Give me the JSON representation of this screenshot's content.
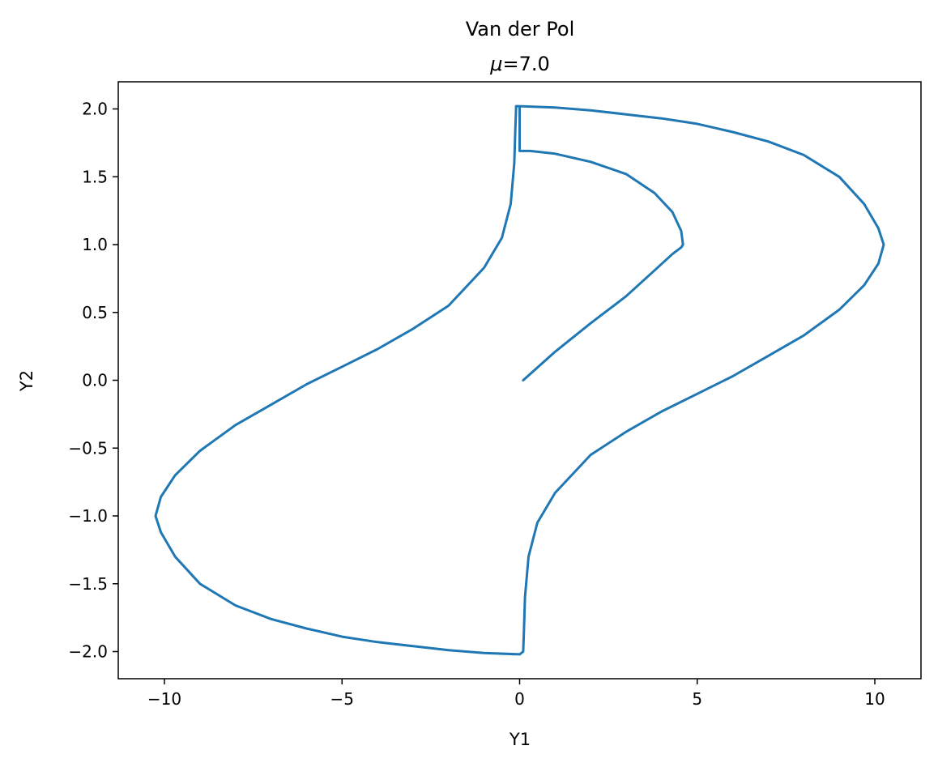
{
  "chart_data": {
    "type": "line",
    "title": "Van der Pol",
    "subtitle_symbol": "μ",
    "subtitle_value": "=7.0",
    "xlabel": "Y1",
    "ylabel": "Y2",
    "xlim": [
      -11.3,
      11.3
    ],
    "ylim": [
      -2.2,
      2.2
    ],
    "grid": false,
    "line_color": "#1f77b4",
    "xticks": [
      {
        "value": -10,
        "label": "−10"
      },
      {
        "value": -5,
        "label": "−5"
      },
      {
        "value": 0,
        "label": "0"
      },
      {
        "value": 5,
        "label": "5"
      },
      {
        "value": 10,
        "label": "10"
      }
    ],
    "yticks": [
      {
        "value": 2.0,
        "label": "2.0"
      },
      {
        "value": 1.5,
        "label": "1.5"
      },
      {
        "value": 1.0,
        "label": "1.0"
      },
      {
        "value": 0.5,
        "label": "0.5"
      },
      {
        "value": 0.0,
        "label": "0.0"
      },
      {
        "value": -0.5,
        "label": "−0.5"
      },
      {
        "value": -1.0,
        "label": "−1.0"
      },
      {
        "value": -1.5,
        "label": "−1.5"
      },
      {
        "value": -2.0,
        "label": "−2.0"
      }
    ],
    "series": [
      {
        "x": [
          0.1,
          1.0,
          2.0,
          3.0,
          3.8,
          4.3,
          4.55,
          4.6,
          4.55,
          4.3,
          3.8,
          3.0,
          2.0,
          1.0,
          0.3,
          0.0,
          0.0,
          1.0,
          2.0,
          3.0,
          4.0,
          5.0,
          6.0,
          7.0,
          8.0,
          9.0,
          9.7,
          10.1,
          10.25,
          10.1,
          9.7,
          9.0,
          8.0,
          7.0,
          6.0,
          5.0,
          4.0,
          3.0,
          2.0,
          1.0,
          0.5,
          0.25,
          0.15,
          0.12,
          0.1,
          0.0,
          -1.0,
          -2.0,
          -3.0,
          -4.0,
          -5.0,
          -6.0,
          -7.0,
          -8.0,
          -9.0,
          -9.7,
          -10.1,
          -10.25,
          -10.1,
          -9.7,
          -9.0,
          -8.0,
          -7.0,
          -6.0,
          -5.0,
          -4.0,
          -3.0,
          -2.0,
          -1.0,
          -0.5,
          -0.25,
          -0.15,
          -0.12,
          -0.1,
          -0.1,
          -0.05,
          0.0
        ],
        "y": [
          0.0,
          0.21,
          0.42,
          0.62,
          0.81,
          0.93,
          0.98,
          1.0,
          1.1,
          1.24,
          1.38,
          1.52,
          1.61,
          1.67,
          1.69,
          1.69,
          2.02,
          2.01,
          1.99,
          1.96,
          1.93,
          1.89,
          1.83,
          1.76,
          1.66,
          1.5,
          1.3,
          1.12,
          1.0,
          0.86,
          0.7,
          0.52,
          0.33,
          0.18,
          0.03,
          -0.1,
          -0.23,
          -0.38,
          -0.55,
          -0.83,
          -1.05,
          -1.3,
          -1.6,
          -1.85,
          -2.0,
          -2.02,
          -2.01,
          -1.99,
          -1.96,
          -1.93,
          -1.89,
          -1.83,
          -1.76,
          -1.66,
          -1.5,
          -1.3,
          -1.12,
          -1.0,
          -0.86,
          -0.7,
          -0.52,
          -0.33,
          -0.18,
          -0.03,
          0.1,
          0.23,
          0.38,
          0.55,
          0.83,
          1.05,
          1.3,
          1.6,
          1.85,
          2.0,
          2.02,
          2.02,
          2.02
        ]
      }
    ]
  }
}
